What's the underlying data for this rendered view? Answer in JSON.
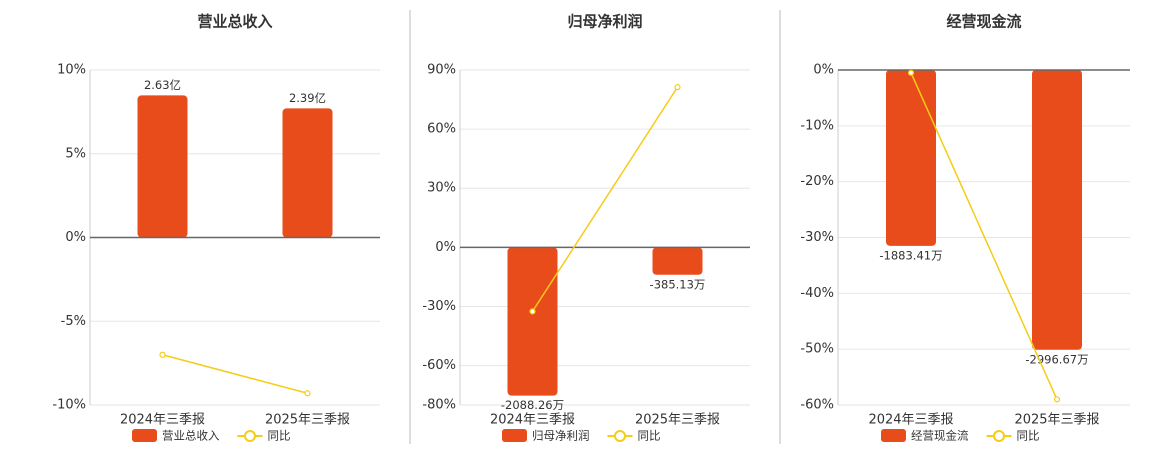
{
  "chart_data": [
    {
      "type": "combo",
      "title": "营业总收入",
      "categories": [
        "2024年三季报",
        "2025年三季报"
      ],
      "ylim": [
        -10,
        10
      ],
      "yticks": [
        {
          "value": 10,
          "label": "10%"
        },
        {
          "value": 5,
          "label": "5%"
        },
        {
          "value": 0,
          "label": "0%"
        },
        {
          "value": -5,
          "label": "-5%"
        },
        {
          "value": -10,
          "label": "-10%"
        }
      ],
      "y2lim": [
        -3.1,
        3.1
      ],
      "grid": true,
      "series": [
        {
          "name": "营业总收入",
          "type": "bar",
          "axis": "y2",
          "color": "#e84c1a",
          "values": [
            2.63,
            2.39
          ],
          "value_labels": [
            "2.63亿",
            "2.39亿"
          ]
        },
        {
          "name": "同比",
          "type": "line",
          "color": "#f5cc17",
          "values": [
            -7.0,
            -9.3
          ]
        }
      ]
    },
    {
      "type": "combo",
      "title": "归母净利润",
      "categories": [
        "2024年三季报",
        "2025年三季报"
      ],
      "ylim": [
        -80,
        90
      ],
      "yticks": [
        {
          "value": 90,
          "label": "90%"
        },
        {
          "value": 60,
          "label": "60%"
        },
        {
          "value": 30,
          "label": "30%"
        },
        {
          "value": 0,
          "label": "0%"
        },
        {
          "value": -30,
          "label": "-30%"
        },
        {
          "value": -60,
          "label": "-60%"
        },
        {
          "value": -80,
          "label": "-80%"
        }
      ],
      "y2lim": [
        -2220,
        2500
      ],
      "grid": true,
      "series": [
        {
          "name": "归母净利润",
          "type": "bar",
          "axis": "y2",
          "color": "#e84c1a",
          "values": [
            -2088.26,
            -385.13
          ],
          "value_labels": [
            "-2088.26万",
            "-385.13万"
          ]
        },
        {
          "name": "同比",
          "type": "line",
          "color": "#f5cc17",
          "values": [
            -32.5,
            81.3
          ]
        }
      ]
    },
    {
      "type": "combo",
      "title": "经营现金流",
      "categories": [
        "2024年三季报",
        "2025年三季报"
      ],
      "ylim": [
        -60,
        0
      ],
      "yticks": [
        {
          "value": 0,
          "label": "0%"
        },
        {
          "value": -10,
          "label": "-10%"
        },
        {
          "value": -20,
          "label": "-20%"
        },
        {
          "value": -30,
          "label": "-30%"
        },
        {
          "value": -40,
          "label": "-40%"
        },
        {
          "value": -50,
          "label": "-50%"
        },
        {
          "value": -60,
          "label": "-60%"
        }
      ],
      "y2lim": [
        -3588,
        0
      ],
      "grid": true,
      "series": [
        {
          "name": "经营现金流",
          "type": "bar",
          "axis": "y2",
          "color": "#e84c1a",
          "values": [
            -1883.41,
            -2996.67
          ],
          "value_labels": [
            "-1883.41万",
            "-2996.67万"
          ]
        },
        {
          "name": "同比",
          "type": "line",
          "color": "#f5cc17",
          "values": [
            -0.5,
            -59.0
          ]
        }
      ]
    }
  ]
}
